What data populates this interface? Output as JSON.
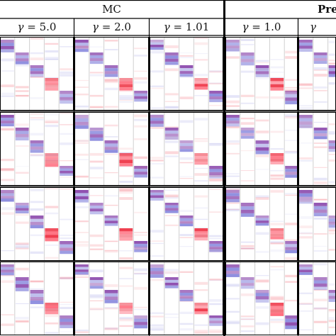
{
  "headers": {
    "left_group": "MC",
    "right_group_partial": "Pre"
  },
  "columns": [
    {
      "gamma_symbol": "γ",
      "label": "= 5.0"
    },
    {
      "gamma_symbol": "γ",
      "label": "= 2.0"
    },
    {
      "gamma_symbol": "γ",
      "label": "= 1.01"
    },
    {
      "gamma_symbol": "γ",
      "label": "= 1.0"
    },
    {
      "gamma_symbol": "γ",
      "label": ""
    }
  ],
  "colors": {
    "red": "#ee3344",
    "purple": "#8844aa",
    "blue": "#8888dd",
    "rule": "#000000",
    "thick_divider": "#000000"
  }
}
